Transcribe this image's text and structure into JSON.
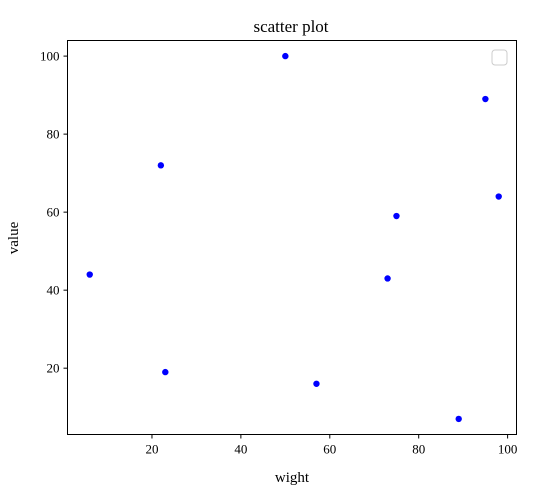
{
  "chart_data": {
    "type": "scatter",
    "title": "scatter plot",
    "xlabel": "wight",
    "ylabel": "value",
    "xlim": [
      1,
      102
    ],
    "ylim": [
      3,
      104
    ],
    "xticks": [
      20,
      40,
      60,
      80,
      100
    ],
    "yticks": [
      20,
      40,
      60,
      80,
      100
    ],
    "grid": false,
    "legend": "upper right (empty)",
    "series": [
      {
        "color": "#0000ff",
        "points": [
          {
            "x": 6,
            "y": 44
          },
          {
            "x": 22,
            "y": 72
          },
          {
            "x": 23,
            "y": 19
          },
          {
            "x": 50,
            "y": 100
          },
          {
            "x": 57,
            "y": 16
          },
          {
            "x": 73,
            "y": 43
          },
          {
            "x": 75,
            "y": 59
          },
          {
            "x": 89,
            "y": 7
          },
          {
            "x": 95,
            "y": 89
          },
          {
            "x": 98,
            "y": 64
          }
        ]
      }
    ]
  }
}
